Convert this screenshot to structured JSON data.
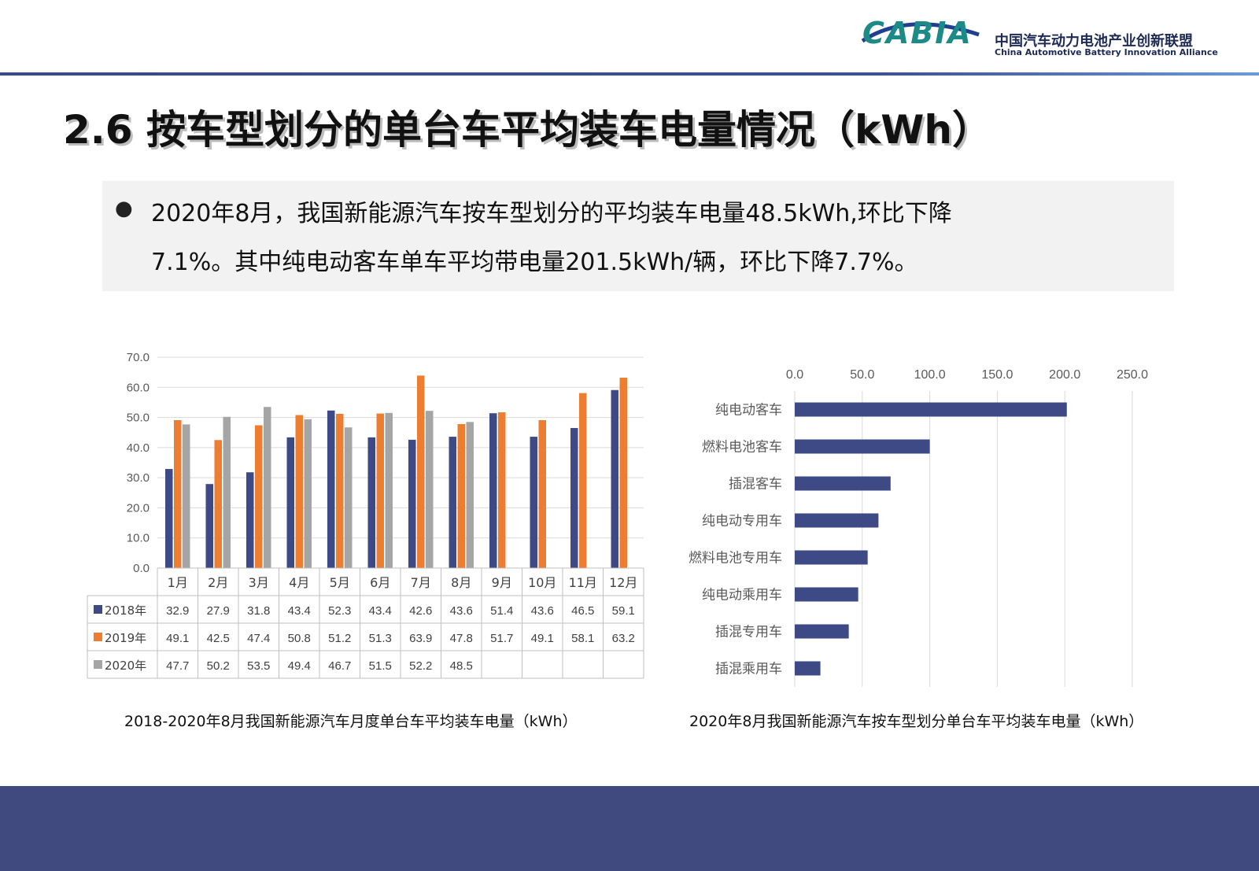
{
  "logo": {
    "mark": "CABIA",
    "cn": "中国汽车动力电池产业创新联盟",
    "en": "China Automotive Battery Innovation Alliance"
  },
  "title": "2.6 按车型划分的单台车平均装车电量情况（kWh）",
  "summary": {
    "bullet": "●",
    "line1": "2020年8月，我国新能源汽车按车型划分的平均装车电量48.5kWh,环比下降",
    "line2": "7.1%。其中纯电动客车单车平均带电量201.5kWh/辆，环比下降7.7%。"
  },
  "colors": {
    "s2018": "#3e4a86",
    "s2019": "#ed7d31",
    "s2020": "#a5a5a5",
    "bar": "#3e4a86"
  },
  "chart_data": [
    {
      "type": "bar",
      "title": "2018-2020年8月我国新能源汽车月度单台车平均装车电量（kWh）",
      "categories": [
        "1月",
        "2月",
        "3月",
        "4月",
        "5月",
        "6月",
        "7月",
        "8月",
        "9月",
        "10月",
        "11月",
        "12月"
      ],
      "ylim": [
        0,
        70
      ],
      "yticks": [
        "0.0",
        "10.0",
        "20.0",
        "30.0",
        "40.0",
        "50.0",
        "60.0",
        "70.0"
      ],
      "series": [
        {
          "name": "2018年",
          "values": [
            32.9,
            27.9,
            31.8,
            43.4,
            52.3,
            43.4,
            42.6,
            43.6,
            51.4,
            43.6,
            46.5,
            59.1
          ]
        },
        {
          "name": "2019年",
          "values": [
            49.1,
            42.5,
            47.4,
            50.8,
            51.2,
            51.3,
            63.9,
            47.8,
            51.7,
            49.1,
            58.1,
            63.2
          ]
        },
        {
          "name": "2020年",
          "values": [
            47.7,
            50.2,
            53.5,
            49.4,
            46.7,
            51.5,
            52.2,
            48.5,
            null,
            null,
            null,
            null
          ]
        }
      ],
      "data_table": true,
      "grid": true
    },
    {
      "type": "bar",
      "orientation": "horizontal",
      "title": "2020年8月我国新能源汽车按车型划分单台车平均装车电量（kWh）",
      "categories": [
        "纯电动客车",
        "燃料电池客车",
        "插混客车",
        "纯电动专用车",
        "燃料电池专用车",
        "纯电动乘用车",
        "插混专用车",
        "插混乘用车"
      ],
      "values": [
        201.5,
        100,
        71,
        62,
        54,
        47,
        40,
        19
      ],
      "xlim": [
        0,
        250
      ],
      "xticks": [
        "0.0",
        "50.0",
        "100.0",
        "150.0",
        "200.0",
        "250.0"
      ],
      "grid": true
    }
  ]
}
